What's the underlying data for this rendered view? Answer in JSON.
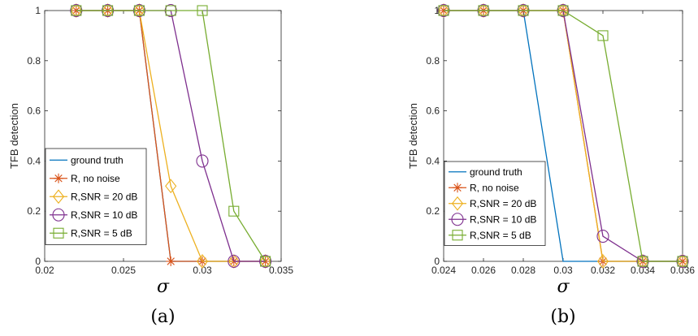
{
  "colors": {
    "ground_truth": "#0072BD",
    "no_noise": "#D95319",
    "snr20": "#EDB120",
    "snr10": "#7E2F8E",
    "snr5": "#77AC30"
  },
  "chart_data": [
    {
      "type": "line",
      "caption": "(a)",
      "xlabel": "σ",
      "ylabel": "TFB detection",
      "xlim": [
        0.02,
        0.035
      ],
      "ylim": [
        0,
        1
      ],
      "xticks": [
        "0.02",
        "0.025",
        "0.03",
        "0.035"
      ],
      "yticks": [
        "0",
        "0.2",
        "0.4",
        "0.6",
        "0.8",
        "1"
      ],
      "legend_position": "bottom-left",
      "grid": false,
      "series": [
        {
          "name": "ground truth",
          "marker": "none",
          "color_key": "ground_truth",
          "x": [
            0.022,
            0.024,
            0.026,
            0.028,
            0.03,
            0.032,
            0.034
          ],
          "y": [
            1,
            1,
            1,
            0,
            0,
            0,
            0
          ]
        },
        {
          "name": "R, no noise",
          "marker": "asterisk",
          "color_key": "no_noise",
          "x": [
            0.022,
            0.024,
            0.026,
            0.028,
            0.03,
            0.032,
            0.034
          ],
          "y": [
            1,
            1,
            1,
            0,
            0,
            0,
            0
          ]
        },
        {
          "name": "R,SNR = 20 dB",
          "marker": "diamond",
          "color_key": "snr20",
          "x": [
            0.022,
            0.024,
            0.026,
            0.028,
            0.03,
            0.032,
            0.034
          ],
          "y": [
            1,
            1,
            1,
            0.3,
            0,
            0,
            0
          ]
        },
        {
          "name": "R,SNR = 10 dB",
          "marker": "circle",
          "color_key": "snr10",
          "x": [
            0.022,
            0.024,
            0.026,
            0.028,
            0.03,
            0.032,
            0.034
          ],
          "y": [
            1,
            1,
            1,
            1,
            0.4,
            0,
            0
          ]
        },
        {
          "name": "R,SNR = 5 dB",
          "marker": "square",
          "color_key": "snr5",
          "x": [
            0.022,
            0.024,
            0.026,
            0.028,
            0.03,
            0.032,
            0.034
          ],
          "y": [
            1,
            1,
            1,
            1,
            1,
            0.2,
            0
          ]
        }
      ]
    },
    {
      "type": "line",
      "caption": "(b)",
      "xlabel": "σ",
      "ylabel": "TFB detection",
      "xlim": [
        0.024,
        0.036
      ],
      "ylim": [
        0,
        1
      ],
      "xticks": [
        "0.024",
        "0.026",
        "0.028",
        "0.03",
        "0.032",
        "0.034",
        "0.036"
      ],
      "yticks": [
        "0",
        "0.2",
        "0.4",
        "0.6",
        "0.8",
        "1"
      ],
      "legend_position": "bottom-left",
      "grid": false,
      "series": [
        {
          "name": "ground truth",
          "marker": "none",
          "color_key": "ground_truth",
          "x": [
            0.024,
            0.026,
            0.028,
            0.03,
            0.032,
            0.034,
            0.036
          ],
          "y": [
            1,
            1,
            1,
            0,
            0,
            0,
            0
          ]
        },
        {
          "name": "R, no noise",
          "marker": "asterisk",
          "color_key": "no_noise",
          "x": [
            0.024,
            0.026,
            0.028,
            0.03,
            0.032,
            0.034,
            0.036
          ],
          "y": [
            1,
            1,
            1,
            1,
            0,
            0,
            0
          ]
        },
        {
          "name": "R,SNR = 20 dB",
          "marker": "diamond",
          "color_key": "snr20",
          "x": [
            0.024,
            0.026,
            0.028,
            0.03,
            0.032,
            0.034,
            0.036
          ],
          "y": [
            1,
            1,
            1,
            1,
            0,
            0,
            0
          ]
        },
        {
          "name": "R,SNR = 10 dB",
          "marker": "circle",
          "color_key": "snr10",
          "x": [
            0.024,
            0.026,
            0.028,
            0.03,
            0.032,
            0.034,
            0.036
          ],
          "y": [
            1,
            1,
            1,
            1,
            0.1,
            0,
            0
          ]
        },
        {
          "name": "R,SNR = 5 dB",
          "marker": "square",
          "color_key": "snr5",
          "x": [
            0.024,
            0.026,
            0.028,
            0.03,
            0.032,
            0.034,
            0.036
          ],
          "y": [
            1,
            1,
            1,
            1,
            0.9,
            0,
            0
          ]
        }
      ]
    }
  ]
}
